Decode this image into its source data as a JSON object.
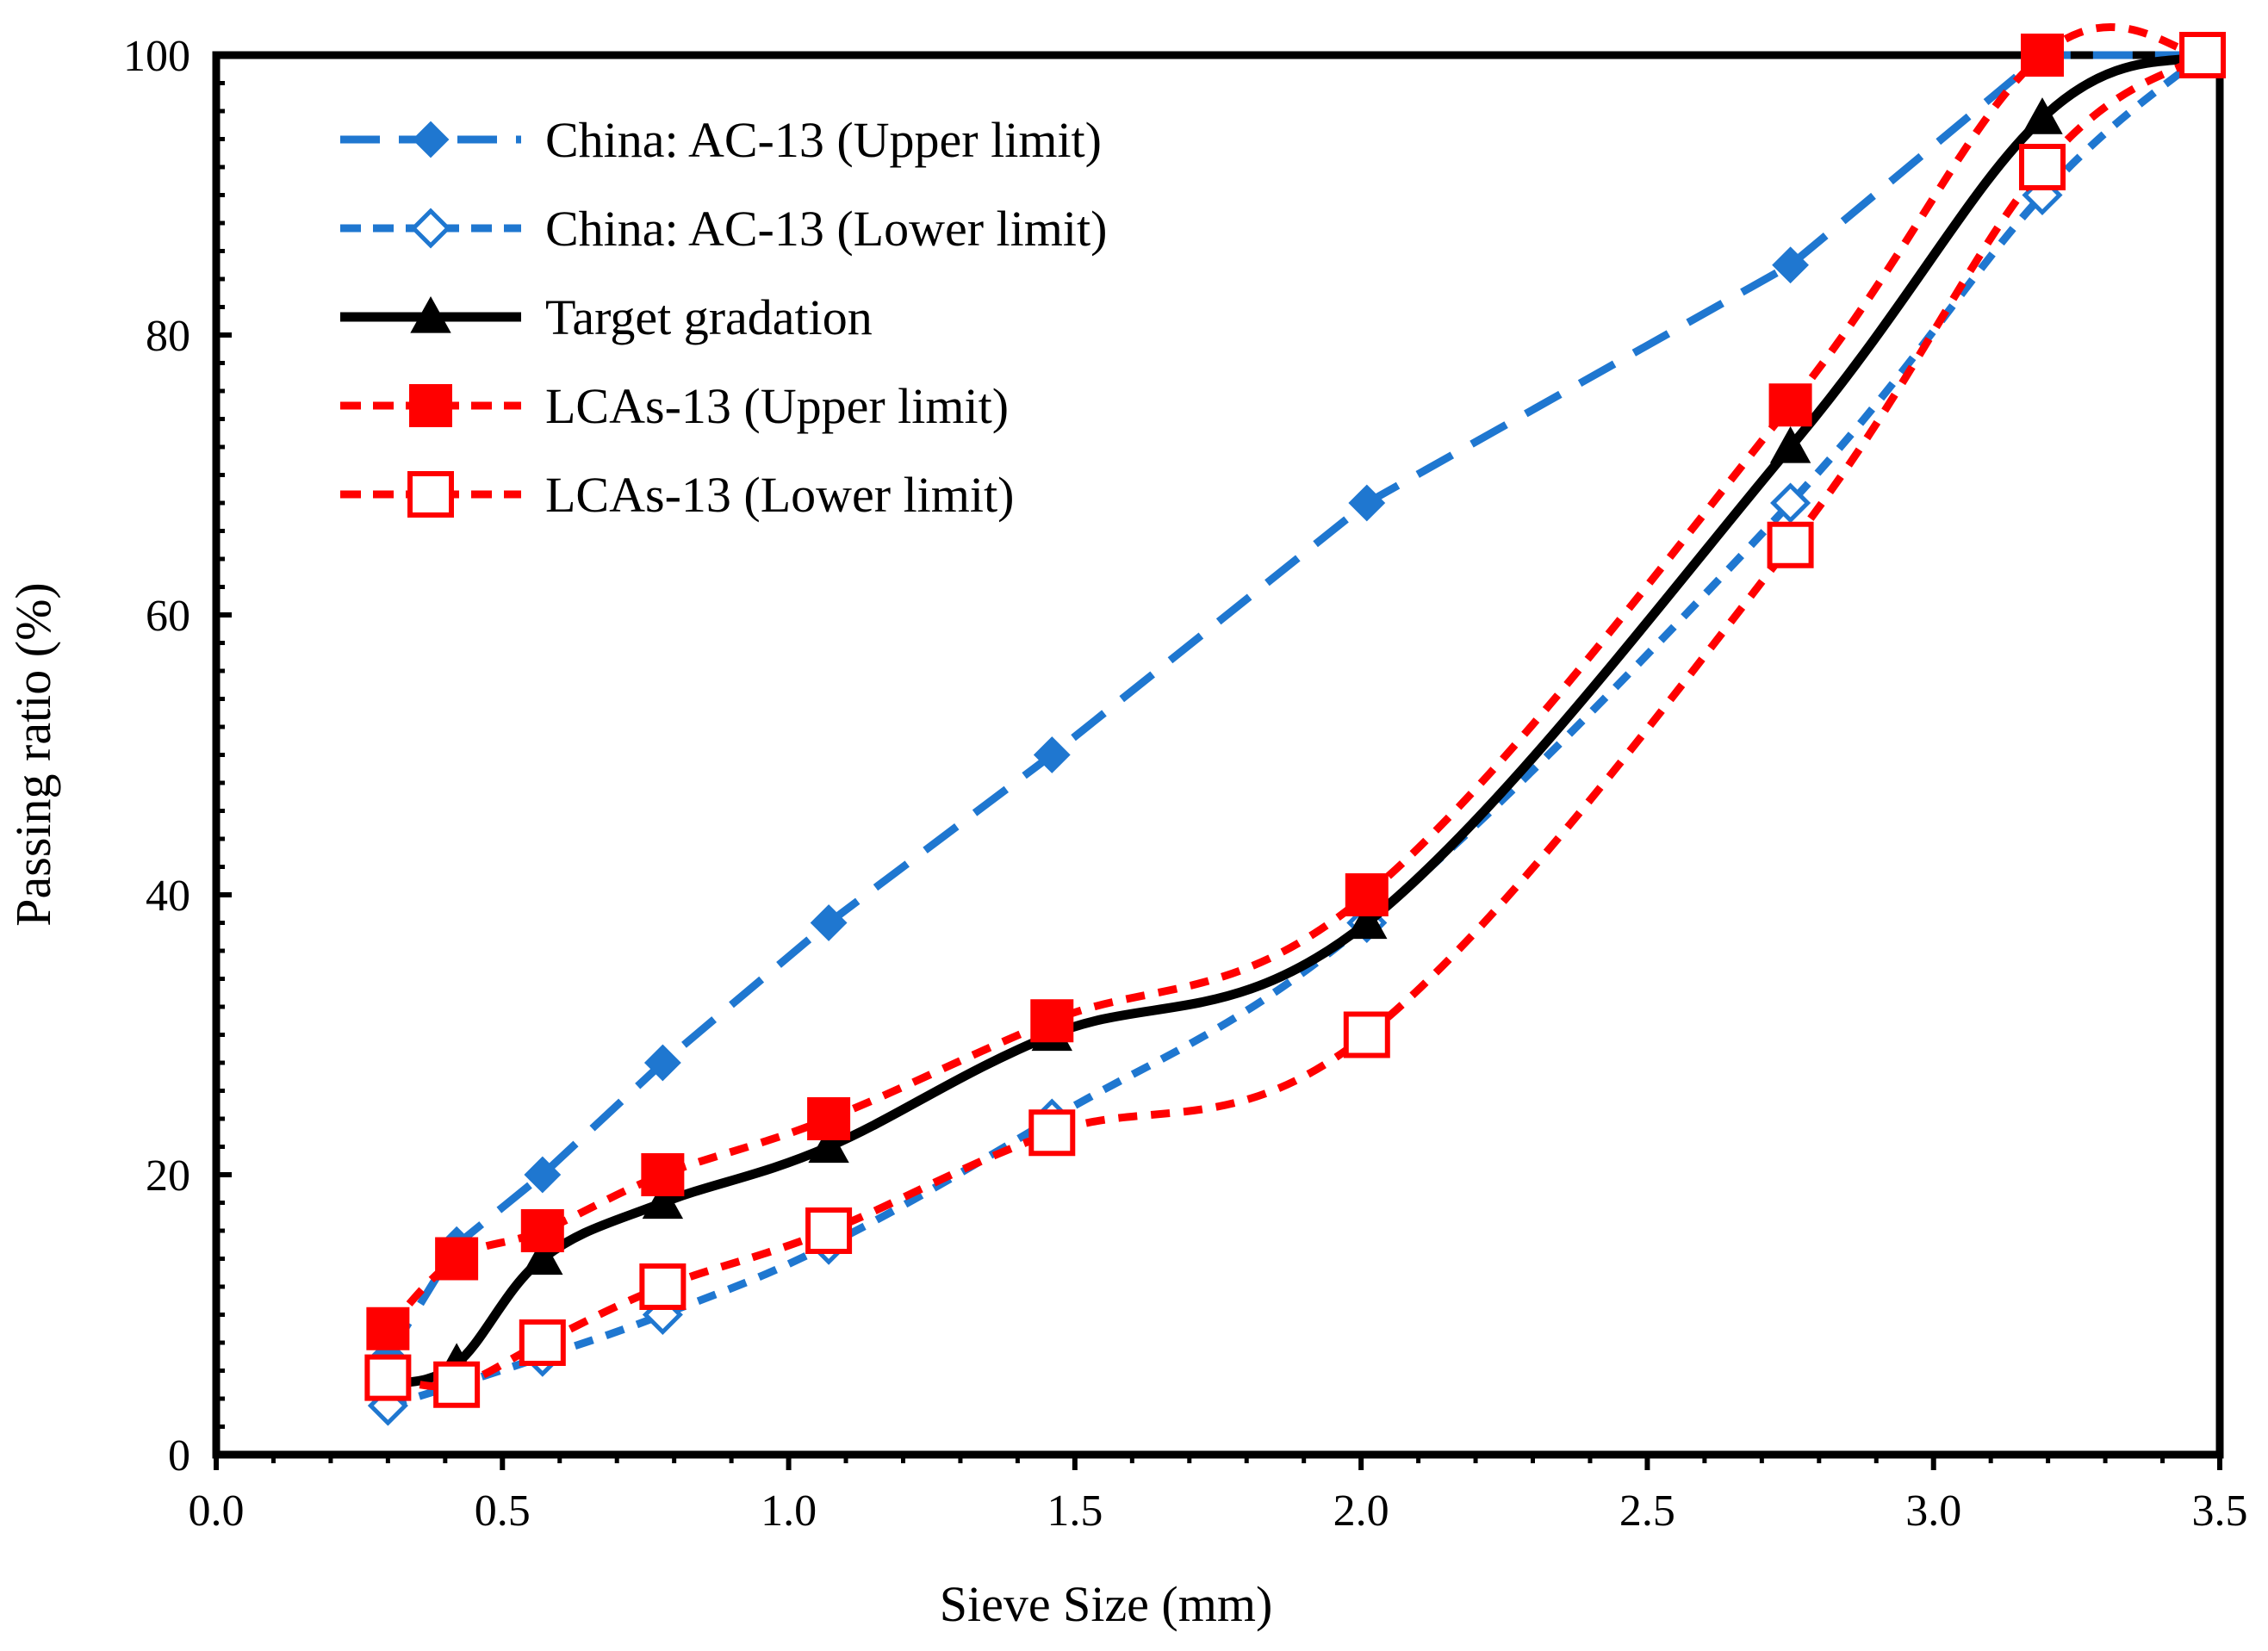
{
  "chart_data": {
    "type": "line",
    "xlabel": "Sieve Size (mm)",
    "ylabel": "Passing ratio (%)",
    "xlim": [
      0.0,
      3.5
    ],
    "ylim": [
      0,
      100
    ],
    "x_ticks": [
      "0.0",
      "0.5",
      "1.0",
      "1.5",
      "2.0",
      "2.5",
      "3.0",
      "3.5"
    ],
    "y_ticks": [
      "0",
      "20",
      "40",
      "60",
      "80",
      "100"
    ],
    "grid": false,
    "legend_position": "top-left",
    "x": [
      0.3,
      0.42,
      0.57,
      0.78,
      1.07,
      1.46,
      2.01,
      2.75,
      3.19,
      3.47
    ],
    "series": [
      {
        "name": "China: AC-13 (Upper limit)",
        "values": [
          7,
          15,
          20,
          28,
          38,
          50,
          68,
          85,
          100,
          100
        ],
        "color": "#1f77d0",
        "dash": "long-dash",
        "marker": "diamond-filled",
        "smooth": false
      },
      {
        "name": "China: AC-13 (Lower limit)",
        "values": [
          3.5,
          5,
          7,
          10,
          15,
          24,
          38,
          68,
          90,
          100
        ],
        "color": "#1f77d0",
        "dash": "short-dash",
        "marker": "diamond-open",
        "smooth": true
      },
      {
        "name": "Target gradation",
        "values": [
          5,
          6.5,
          14,
          18,
          22,
          30,
          38,
          72,
          95.5,
          100
        ],
        "color": "#000000",
        "dash": "solid",
        "marker": "triangle-filled",
        "smooth": true
      },
      {
        "name": "LCAs-13 (Upper limit)",
        "values": [
          9,
          14,
          16,
          20,
          24,
          31,
          40,
          75,
          100,
          100
        ],
        "color": "#ff0000",
        "dash": "short-dash",
        "marker": "square-filled",
        "smooth": true
      },
      {
        "name": "LCAs-13 (Lower limit)",
        "values": [
          5.5,
          5,
          8,
          12,
          16,
          23,
          30,
          65,
          92,
          100
        ],
        "color": "#ff0000",
        "dash": "short-dash",
        "marker": "square-open",
        "smooth": true
      }
    ]
  }
}
